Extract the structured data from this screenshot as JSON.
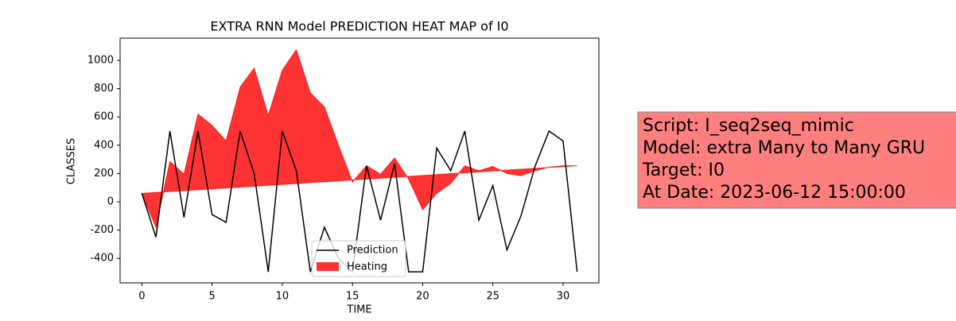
{
  "chart_data": {
    "type": "line-fill",
    "title": "EXTRA RNN Model PREDICTION HEAT MAP of I0",
    "x_label": "TIME",
    "y_label": "CLASSES",
    "x": [
      0,
      1,
      2,
      3,
      4,
      5,
      6,
      7,
      8,
      9,
      10,
      11,
      12,
      13,
      14,
      15,
      16,
      17,
      18,
      19,
      20,
      21,
      22,
      23,
      24,
      25,
      26,
      27,
      28,
      29,
      30,
      31
    ],
    "series": [
      {
        "name": "Prediction",
        "color": "#000000",
        "values": [
          60,
          -250,
          500,
          -110,
          500,
          -90,
          -145,
          500,
          200,
          -495,
          500,
          220,
          -495,
          -180,
          -400,
          -495,
          255,
          -130,
          270,
          -495,
          -495,
          380,
          220,
          500,
          -130,
          115,
          -340,
          -100,
          250,
          500,
          430,
          -495
        ]
      },
      {
        "name": "Heating",
        "color": "#ff0000",
        "alpha": 0.8,
        "values": [
          60,
          -180,
          285,
          195,
          620,
          540,
          430,
          810,
          945,
          610,
          930,
          1075,
          770,
          670,
          400,
          140,
          255,
          195,
          310,
          160,
          -55,
          60,
          130,
          255,
          220,
          250,
          200,
          185,
          220,
          245,
          255,
          255
        ],
        "base": [
          60,
          66,
          73,
          79,
          85,
          92,
          98,
          104,
          110,
          117,
          123,
          129,
          136,
          142,
          148,
          155,
          161,
          167,
          173,
          180,
          186,
          192,
          199,
          205,
          211,
          218,
          224,
          230,
          236,
          243,
          249,
          255
        ]
      }
    ],
    "xlim": [
      -1.55,
      32.55
    ],
    "ylim": [
      -573,
      1157
    ],
    "xticks": [
      0,
      5,
      10,
      15,
      20,
      25,
      30
    ],
    "yticks": [
      -400,
      -200,
      0,
      200,
      400,
      600,
      800,
      1000
    ],
    "grid": false,
    "legend": "lower center",
    "annotation": [
      "Script: I_seq2seq_mimic",
      "Model: extra Many to Many GRU",
      "Target: I0",
      "At Date: 2023-06-12 15:00:00"
    ]
  }
}
